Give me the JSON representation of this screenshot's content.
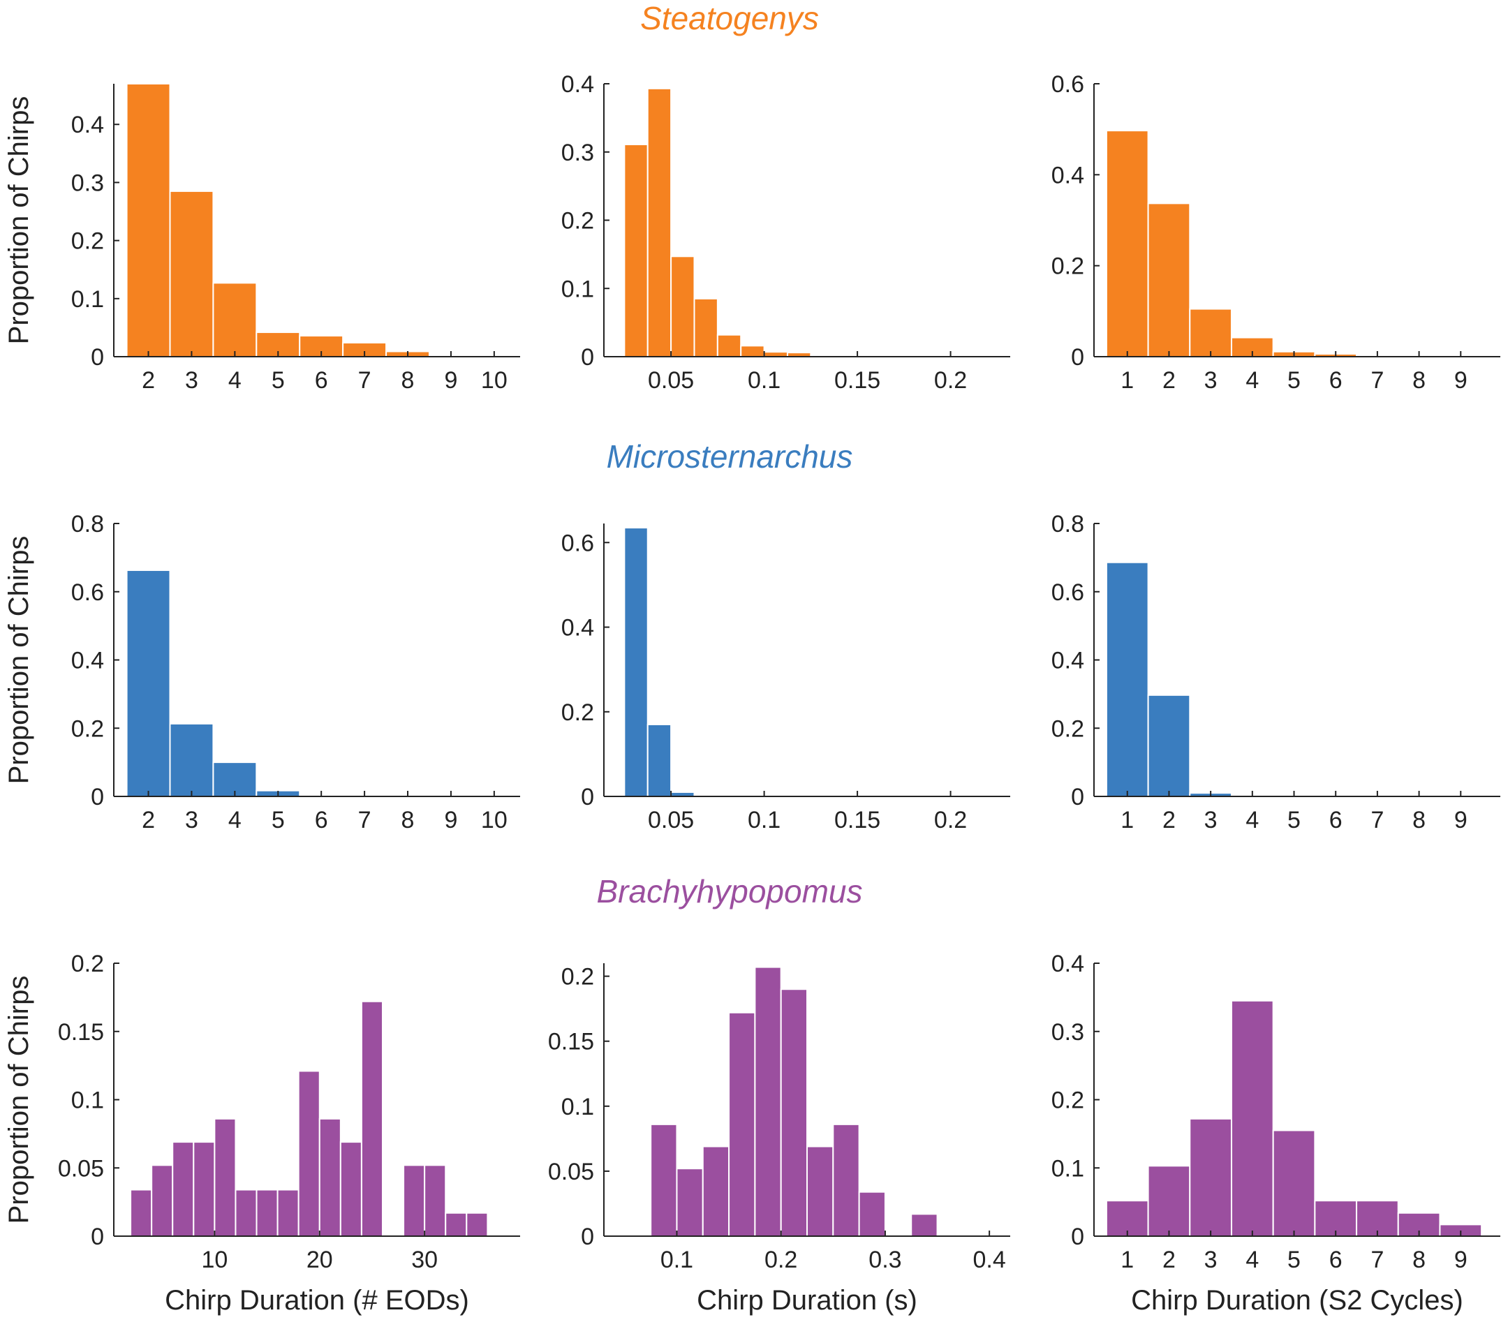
{
  "colors": {
    "steatogenys": "#f58220",
    "microsternarchus": "#3a7dbf",
    "brachyhypopomus": "#9b4f9f",
    "axis": "#222222"
  },
  "chart_data": [
    {
      "type": "bar",
      "row": 0,
      "col": 0,
      "row_title": "Steatogenys",
      "title": "",
      "xlabel": "",
      "ylabel": "Proportion of Chirps",
      "xlim": [
        1.2,
        10.6
      ],
      "ylim": [
        0,
        0.47
      ],
      "xticks": [
        2,
        3,
        4,
        5,
        6,
        7,
        8,
        9,
        10
      ],
      "xtick_labels": [
        "2",
        "3",
        "4",
        "5",
        "6",
        "7",
        "8",
        "9",
        "10"
      ],
      "yticks": [
        0,
        0.1,
        0.2,
        0.3,
        0.4
      ],
      "ytick_labels": [
        "0",
        "0.1",
        "0.2",
        "0.3",
        "0.4"
      ],
      "bin_edges": [
        1.5,
        2.5,
        3.5,
        4.5,
        5.5,
        6.5,
        7.5,
        8.5,
        9.5,
        10.5
      ],
      "values": [
        0.47,
        0.285,
        0.127,
        0.042,
        0.036,
        0.024,
        0.009,
        0.002,
        0.002
      ]
    },
    {
      "type": "bar",
      "row": 0,
      "col": 1,
      "row_title": "Steatogenys",
      "title": "",
      "xlabel": "",
      "ylabel": "",
      "xlim": [
        0.014,
        0.232
      ],
      "ylim": [
        0,
        0.4
      ],
      "xticks": [
        0.05,
        0.1,
        0.15,
        0.2
      ],
      "xtick_labels": [
        "0.05",
        "0.1",
        "0.15",
        "0.2"
      ],
      "yticks": [
        0,
        0.1,
        0.2,
        0.3,
        0.4
      ],
      "ytick_labels": [
        "0",
        "0.1",
        "0.2",
        "0.3",
        "0.4"
      ],
      "bin_edges": [
        0.025,
        0.0375,
        0.05,
        0.0625,
        0.075,
        0.0875,
        0.1,
        0.1125,
        0.125,
        0.1375,
        0.15
      ],
      "values": [
        0.311,
        0.393,
        0.147,
        0.085,
        0.032,
        0.016,
        0.007,
        0.006,
        0.002,
        0.002
      ]
    },
    {
      "type": "bar",
      "row": 0,
      "col": 2,
      "row_title": "Steatogenys",
      "title": "",
      "xlabel": "",
      "ylabel": "",
      "xlim": [
        0.2,
        9.95
      ],
      "ylim": [
        0,
        0.6
      ],
      "xticks": [
        1,
        2,
        3,
        4,
        5,
        6,
        7,
        8,
        9
      ],
      "xtick_labels": [
        "1",
        "2",
        "3",
        "4",
        "5",
        "6",
        "7",
        "8",
        "9"
      ],
      "yticks": [
        0,
        0.2,
        0.4,
        0.6
      ],
      "ytick_labels": [
        "0",
        "0.2",
        "0.4",
        "0.6"
      ],
      "bin_edges": [
        0.5,
        1.5,
        2.5,
        3.5,
        4.5,
        5.5,
        6.5,
        7.5,
        8.5,
        9.5
      ],
      "values": [
        0.497,
        0.337,
        0.105,
        0.042,
        0.011,
        0.006,
        0.002,
        0.002,
        0.002
      ]
    },
    {
      "type": "bar",
      "row": 1,
      "col": 0,
      "row_title": "Microsternarchus",
      "title": "",
      "xlabel": "",
      "ylabel": "Proportion of Chirps",
      "xlim": [
        1.2,
        10.6
      ],
      "ylim": [
        0,
        0.8
      ],
      "xticks": [
        2,
        3,
        4,
        5,
        6,
        7,
        8,
        9,
        10
      ],
      "xtick_labels": [
        "2",
        "3",
        "4",
        "5",
        "6",
        "7",
        "8",
        "9",
        "10"
      ],
      "yticks": [
        0,
        0.2,
        0.4,
        0.6,
        0.8
      ],
      "ytick_labels": [
        "0",
        "0.2",
        "0.4",
        "0.6",
        "0.8"
      ],
      "bin_edges": [
        1.5,
        2.5,
        3.5,
        4.5,
        5.5
      ],
      "values": [
        0.663,
        0.213,
        0.1,
        0.017
      ]
    },
    {
      "type": "bar",
      "row": 1,
      "col": 1,
      "row_title": "Microsternarchus",
      "title": "",
      "xlabel": "",
      "ylabel": "",
      "xlim": [
        0.014,
        0.232
      ],
      "ylim": [
        0,
        0.645
      ],
      "xticks": [
        0.05,
        0.1,
        0.15,
        0.2
      ],
      "xtick_labels": [
        "0.05",
        "0.1",
        "0.15",
        "0.2"
      ],
      "yticks": [
        0,
        0.2,
        0.4,
        0.6
      ],
      "ytick_labels": [
        "0",
        "0.2",
        "0.4",
        "0.6"
      ],
      "bin_edges": [
        0.025,
        0.0375,
        0.05,
        0.0625
      ],
      "values": [
        0.635,
        0.17,
        0.01
      ]
    },
    {
      "type": "bar",
      "row": 1,
      "col": 2,
      "row_title": "Microsternarchus",
      "title": "",
      "xlabel": "",
      "ylabel": "",
      "xlim": [
        0.2,
        9.95
      ],
      "ylim": [
        0,
        0.8
      ],
      "xticks": [
        1,
        2,
        3,
        4,
        5,
        6,
        7,
        8,
        9
      ],
      "xtick_labels": [
        "1",
        "2",
        "3",
        "4",
        "5",
        "6",
        "7",
        "8",
        "9"
      ],
      "yticks": [
        0,
        0.2,
        0.4,
        0.6,
        0.8
      ],
      "ytick_labels": [
        "0",
        "0.2",
        "0.4",
        "0.6",
        "0.8"
      ],
      "bin_edges": [
        0.5,
        1.5,
        2.5,
        3.5
      ],
      "values": [
        0.686,
        0.297,
        0.01
      ]
    },
    {
      "type": "bar",
      "row": 2,
      "col": 0,
      "row_title": "Brachyhypopomus",
      "title": "",
      "xlabel": "Chirp Duration (# EODs)",
      "ylabel": "Proportion of Chirps",
      "xlim": [
        0.4,
        39.1
      ],
      "ylim": [
        0,
        0.2
      ],
      "xticks": [
        10,
        20,
        30
      ],
      "xtick_labels": [
        "10",
        "20",
        "30"
      ],
      "yticks": [
        0,
        0.05,
        0.1,
        0.15,
        0.2
      ],
      "ytick_labels": [
        "0",
        "0.05",
        "0.1",
        "0.15",
        "0.2"
      ],
      "bin_edges": [
        2,
        4,
        6,
        8,
        10,
        12,
        14,
        16,
        18,
        20,
        22,
        24,
        26,
        28,
        30,
        32,
        34,
        36
      ],
      "values": [
        0.034,
        0.052,
        0.069,
        0.069,
        0.086,
        0.034,
        0.034,
        0.034,
        0.121,
        0.086,
        0.069,
        0.172,
        0,
        0.052,
        0.052,
        0.017,
        0.017
      ]
    },
    {
      "type": "bar",
      "row": 2,
      "col": 1,
      "row_title": "Brachyhypopomus",
      "title": "",
      "xlabel": "Chirp Duration (s)",
      "ylabel": "",
      "xlim": [
        0.03,
        0.42
      ],
      "ylim": [
        0,
        0.21
      ],
      "xticks": [
        0.1,
        0.2,
        0.3,
        0.4
      ],
      "xtick_labels": [
        "0.1",
        "0.2",
        "0.3",
        "0.4"
      ],
      "yticks": [
        0,
        0.05,
        0.1,
        0.15,
        0.2
      ],
      "ytick_labels": [
        "0",
        "0.05",
        "0.1",
        "0.15",
        "0.2"
      ],
      "bin_edges": [
        0.075,
        0.1,
        0.125,
        0.15,
        0.175,
        0.2,
        0.225,
        0.25,
        0.275,
        0.3,
        0.325,
        0.35
      ],
      "values": [
        0.086,
        0.052,
        0.069,
        0.172,
        0.207,
        0.19,
        0.069,
        0.086,
        0.034,
        0,
        0.017
      ]
    },
    {
      "type": "bar",
      "row": 2,
      "col": 2,
      "row_title": "Brachyhypopomus",
      "title": "",
      "xlabel": "Chirp Duration (S2 Cycles)",
      "ylabel": "",
      "xlim": [
        0.2,
        9.95
      ],
      "ylim": [
        0,
        0.4
      ],
      "xticks": [
        1,
        2,
        3,
        4,
        5,
        6,
        7,
        8,
        9
      ],
      "xtick_labels": [
        "1",
        "2",
        "3",
        "4",
        "5",
        "6",
        "7",
        "8",
        "9"
      ],
      "yticks": [
        0,
        0.1,
        0.2,
        0.3,
        0.4
      ],
      "ytick_labels": [
        "0",
        "0.1",
        "0.2",
        "0.3",
        "0.4"
      ],
      "bin_edges": [
        0.5,
        1.5,
        2.5,
        3.5,
        4.5,
        5.5,
        6.5,
        7.5,
        8.5,
        9.5
      ],
      "values": [
        0.052,
        0.103,
        0.172,
        0.345,
        0.155,
        0.052,
        0.052,
        0.034,
        0.017
      ]
    }
  ]
}
